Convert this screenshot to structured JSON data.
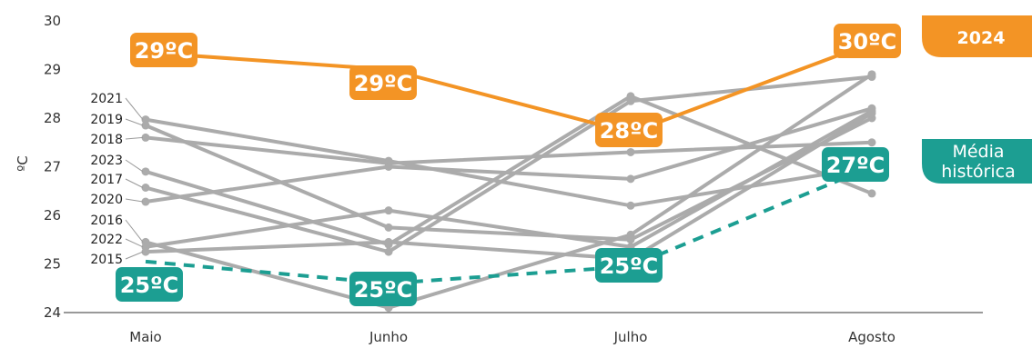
{
  "chart_data": {
    "type": "line",
    "categories": [
      "Maio",
      "Junho",
      "Julho",
      "Agosto"
    ],
    "ylabel": "ºC",
    "ylim": [
      24,
      30
    ],
    "yticks": [
      "24",
      "25",
      "26",
      "27",
      "28",
      "29",
      "30"
    ],
    "grid": false,
    "colors": {
      "highlight": "#F39425",
      "historical": "#1C9E92",
      "years": "#ABABAB"
    },
    "series": [
      {
        "name": "2021",
        "values": [
          27.97,
          27.12,
          26.2,
          27.0
        ]
      },
      {
        "name": "2019",
        "values": [
          27.85,
          25.75,
          25.5,
          28.0
        ]
      },
      {
        "name": "2018",
        "values": [
          27.6,
          27.07,
          27.3,
          27.5
        ]
      },
      {
        "name": "2023",
        "values": [
          26.9,
          25.4,
          28.45,
          26.45
        ]
      },
      {
        "name": "2017",
        "values": [
          26.57,
          25.25,
          28.35,
          28.85
        ]
      },
      {
        "name": "2020",
        "values": [
          26.28,
          27.0,
          26.75,
          28.2
        ]
      },
      {
        "name": "2016",
        "values": [
          25.45,
          24.1,
          25.6,
          28.9
        ]
      },
      {
        "name": "2022",
        "values": [
          25.35,
          26.1,
          25.35,
          28.15
        ]
      },
      {
        "name": "2015",
        "values": [
          25.25,
          25.45,
          25.1,
          28.1
        ]
      },
      {
        "name": "2024",
        "values": [
          29.35,
          29.0,
          27.7,
          29.55
        ],
        "labels": [
          "29ºC",
          "29ºC",
          "28ºC",
          "30ºC"
        ]
      },
      {
        "name": "Média histórica",
        "values": [
          25.05,
          24.6,
          24.95,
          27.0
        ],
        "labels": [
          "25ºC",
          "25ºC",
          "25ºC",
          "27ºC"
        ]
      }
    ]
  }
}
